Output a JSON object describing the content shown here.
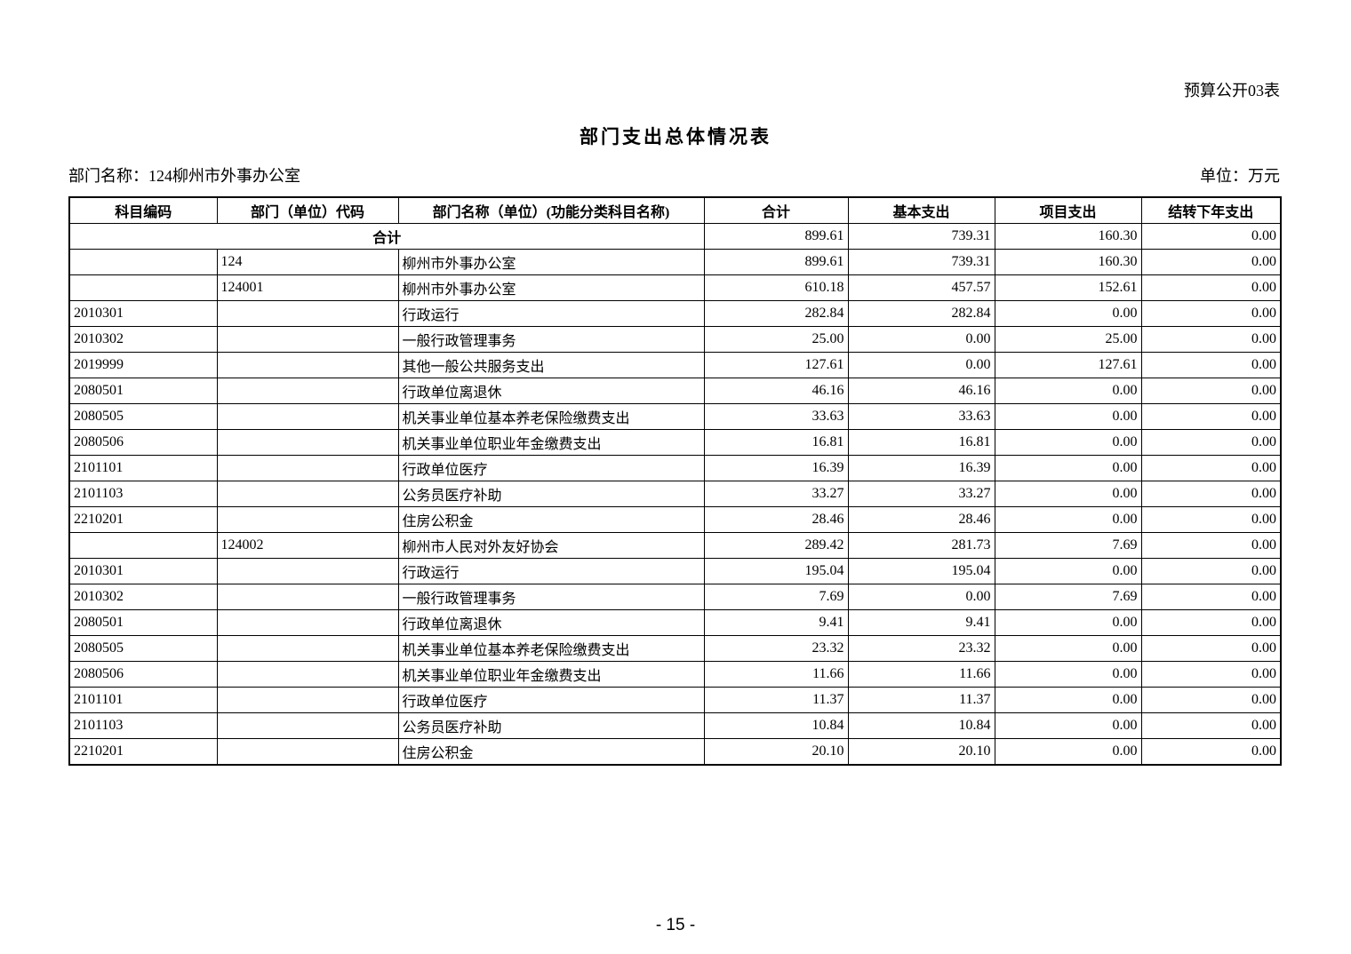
{
  "page": {
    "form_label": "预算公开03表",
    "title": "部门支出总体情况表",
    "department_label": "部门名称：124柳州市外事办公室",
    "unit_label": "单位：万元",
    "page_number": "- 15 -"
  },
  "table": {
    "columns": [
      "科目编码",
      "部门（单位）代码",
      "部门名称（单位）(功能分类科目名称)",
      "合计",
      "基本支出",
      "项目支出",
      "结转下年支出"
    ],
    "total_row": {
      "label": "合计",
      "total": "899.61",
      "basic": "739.31",
      "project": "160.30",
      "carryover": "0.00"
    },
    "rows": [
      {
        "code": "",
        "dept_code": "124",
        "name": "柳州市外事办公室",
        "total": "899.61",
        "basic": "739.31",
        "project": "160.30",
        "carryover": "0.00"
      },
      {
        "code": "",
        "dept_code": "124001",
        "name": "柳州市外事办公室",
        "total": "610.18",
        "basic": "457.57",
        "project": "152.61",
        "carryover": "0.00"
      },
      {
        "code": "2010301",
        "dept_code": "",
        "name": "行政运行",
        "total": "282.84",
        "basic": "282.84",
        "project": "0.00",
        "carryover": "0.00"
      },
      {
        "code": "2010302",
        "dept_code": "",
        "name": "一般行政管理事务",
        "total": "25.00",
        "basic": "0.00",
        "project": "25.00",
        "carryover": "0.00"
      },
      {
        "code": "2019999",
        "dept_code": "",
        "name": "其他一般公共服务支出",
        "total": "127.61",
        "basic": "0.00",
        "project": "127.61",
        "carryover": "0.00"
      },
      {
        "code": "2080501",
        "dept_code": "",
        "name": "行政单位离退休",
        "total": "46.16",
        "basic": "46.16",
        "project": "0.00",
        "carryover": "0.00"
      },
      {
        "code": "2080505",
        "dept_code": "",
        "name": "机关事业单位基本养老保险缴费支出",
        "total": "33.63",
        "basic": "33.63",
        "project": "0.00",
        "carryover": "0.00"
      },
      {
        "code": "2080506",
        "dept_code": "",
        "name": "机关事业单位职业年金缴费支出",
        "total": "16.81",
        "basic": "16.81",
        "project": "0.00",
        "carryover": "0.00"
      },
      {
        "code": "2101101",
        "dept_code": "",
        "name": "行政单位医疗",
        "total": "16.39",
        "basic": "16.39",
        "project": "0.00",
        "carryover": "0.00"
      },
      {
        "code": "2101103",
        "dept_code": "",
        "name": "公务员医疗补助",
        "total": "33.27",
        "basic": "33.27",
        "project": "0.00",
        "carryover": "0.00"
      },
      {
        "code": "2210201",
        "dept_code": "",
        "name": "住房公积金",
        "total": "28.46",
        "basic": "28.46",
        "project": "0.00",
        "carryover": "0.00"
      },
      {
        "code": "",
        "dept_code": "124002",
        "name": "柳州市人民对外友好协会",
        "total": "289.42",
        "basic": "281.73",
        "project": "7.69",
        "carryover": "0.00"
      },
      {
        "code": "2010301",
        "dept_code": "",
        "name": "行政运行",
        "total": "195.04",
        "basic": "195.04",
        "project": "0.00",
        "carryover": "0.00"
      },
      {
        "code": "2010302",
        "dept_code": "",
        "name": "一般行政管理事务",
        "total": "7.69",
        "basic": "0.00",
        "project": "7.69",
        "carryover": "0.00"
      },
      {
        "code": "2080501",
        "dept_code": "",
        "name": "行政单位离退休",
        "total": "9.41",
        "basic": "9.41",
        "project": "0.00",
        "carryover": "0.00"
      },
      {
        "code": "2080505",
        "dept_code": "",
        "name": "机关事业单位基本养老保险缴费支出",
        "total": "23.32",
        "basic": "23.32",
        "project": "0.00",
        "carryover": "0.00"
      },
      {
        "code": "2080506",
        "dept_code": "",
        "name": "机关事业单位职业年金缴费支出",
        "total": "11.66",
        "basic": "11.66",
        "project": "0.00",
        "carryover": "0.00"
      },
      {
        "code": "2101101",
        "dept_code": "",
        "name": "行政单位医疗",
        "total": "11.37",
        "basic": "11.37",
        "project": "0.00",
        "carryover": "0.00"
      },
      {
        "code": "2101103",
        "dept_code": "",
        "name": "公务员医疗补助",
        "total": "10.84",
        "basic": "10.84",
        "project": "0.00",
        "carryover": "0.00"
      },
      {
        "code": "2210201",
        "dept_code": "",
        "name": "住房公积金",
        "total": "20.10",
        "basic": "20.10",
        "project": "0.00",
        "carryover": "0.00"
      }
    ]
  }
}
